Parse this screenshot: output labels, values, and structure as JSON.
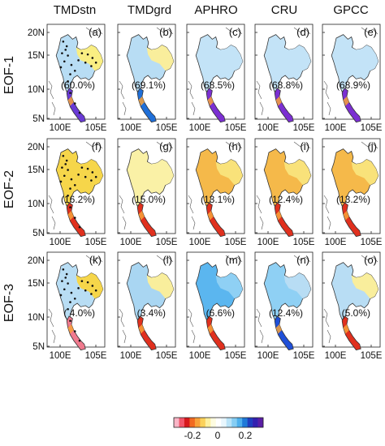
{
  "columns": [
    "TMDstn",
    "TMDgrd",
    "APHRO",
    "CRU",
    "GPCC"
  ],
  "rows": [
    "EOF-1",
    "EOF-2",
    "EOF-3"
  ],
  "axis": {
    "y_ticks": [
      "20N",
      "15N",
      "10N",
      "5N"
    ],
    "x_ticks": [
      "100E",
      "105E"
    ]
  },
  "panels": [
    {
      "letter": "(a)",
      "pct": "(60.0%)",
      "fill": "#b8ddf4",
      "fill2": "#f9ee82",
      "south": "#6a3ad6",
      "stations": true
    },
    {
      "letter": "(b)",
      "pct": "(69.1%)",
      "fill": "#b8ddf4",
      "fill2": "#f9ee9c",
      "south": "#1f6fd8",
      "stations": false
    },
    {
      "letter": "(c)",
      "pct": "(68.5%)",
      "fill": "#c3e3f7",
      "fill2": "#c3e3f7",
      "south": "#7b2fd2",
      "stations": false
    },
    {
      "letter": "(d)",
      "pct": "(68.8%)",
      "fill": "#c3e3f7",
      "fill2": "#c3e3f7",
      "south": "#7b2fd2",
      "stations": false
    },
    {
      "letter": "(e)",
      "pct": "(68.9%)",
      "fill": "#c3e3f7",
      "fill2": "#c3e3f7",
      "south": "#7b2fd2",
      "stations": false
    },
    {
      "letter": "(f)",
      "pct": "(16.2%)",
      "fill": "#f6d64a",
      "fill2": "#f6d64a",
      "south": "#e0301e",
      "stations": true
    },
    {
      "letter": "(g)",
      "pct": "(15.0%)",
      "fill": "#faf1a6",
      "fill2": "#faf1a6",
      "south": "#e0301e",
      "stations": false
    },
    {
      "letter": "(h)",
      "pct": "(13.1%)",
      "fill": "#f5b94a",
      "fill2": "#f9e27a",
      "south": "#e0301e",
      "stations": false
    },
    {
      "letter": "(i)",
      "pct": "(12.4%)",
      "fill": "#f5b94a",
      "fill2": "#f9e27a",
      "south": "#e0301e",
      "stations": false
    },
    {
      "letter": "(j)",
      "pct": "(13.2%)",
      "fill": "#f5b94a",
      "fill2": "#f9e27a",
      "south": "#e0301e",
      "stations": false
    },
    {
      "letter": "(k)",
      "pct": "( 4.0%)",
      "fill": "#b8ddf4",
      "fill2": "#f6d64a",
      "south": "#f07a8e",
      "stations": true
    },
    {
      "letter": "(l)",
      "pct": "(3.4%)",
      "fill": "#a9d6f2",
      "fill2": "#f9ee9c",
      "south": "#e0301e",
      "stations": false
    },
    {
      "letter": "(m)",
      "pct": "(6.6%)",
      "fill": "#5bb6ef",
      "fill2": "#8fd0f4",
      "south": "#e0301e",
      "stations": false
    },
    {
      "letter": "(n)",
      "pct": "(12.4%)",
      "fill": "#8fd0f4",
      "fill2": "#b8ddf4",
      "south": "#1f4fd8",
      "stations": false
    },
    {
      "letter": "(o)",
      "pct": "(5.0%)",
      "fill": "#b8ddf4",
      "fill2": "#f9ee9c",
      "south": "#e0301e",
      "stations": false
    }
  ],
  "colorbar": {
    "colors": [
      "#f9b5c6",
      "#f2566b",
      "#d7191c",
      "#f26a21",
      "#f8a23a",
      "#fbd15a",
      "#fdf0a0",
      "#fefce0",
      "#ffffff",
      "#e8f6fd",
      "#b9e3f8",
      "#86cdf3",
      "#4fb0ec",
      "#1f7ad8",
      "#1f3fbf",
      "#3320b0",
      "#5a1ea5"
    ],
    "labels": [
      "-0.2",
      "0",
      "0.2"
    ]
  }
}
